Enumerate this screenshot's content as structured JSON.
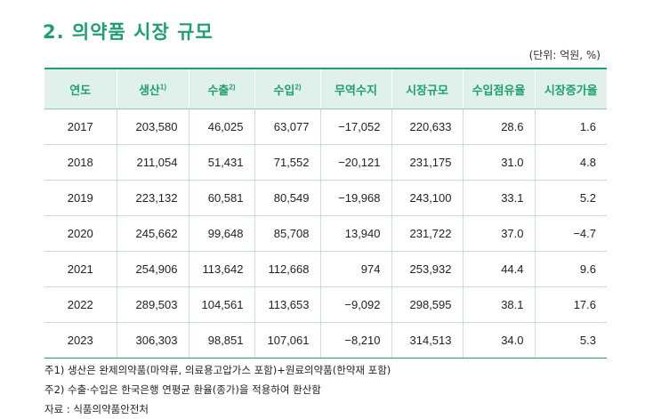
{
  "title": "2. 의약품 시장 규모",
  "unit": "(단위: 억원, %)",
  "headers": [
    {
      "label": "연도",
      "sup": ""
    },
    {
      "label": "생산",
      "sup": "1)"
    },
    {
      "label": "수출",
      "sup": "2)"
    },
    {
      "label": "수입",
      "sup": "2)"
    },
    {
      "label": "무역수지",
      "sup": ""
    },
    {
      "label": "시장규모",
      "sup": ""
    },
    {
      "label": "수입점유율",
      "sup": ""
    },
    {
      "label": "시장증가율",
      "sup": ""
    }
  ],
  "rows": [
    [
      "2017",
      "203,580",
      "46,025",
      "63,077",
      "−17,052",
      "220,633",
      "28.6",
      "1.6"
    ],
    [
      "2018",
      "211,054",
      "51,431",
      "71,552",
      "−20,121",
      "231,175",
      "31.0",
      "4.8"
    ],
    [
      "2019",
      "223,132",
      "60,581",
      "80,549",
      "−19,968",
      "243,100",
      "33.1",
      "5.2"
    ],
    [
      "2020",
      "245,662",
      "99,648",
      "85,708",
      "13,940",
      "231,722",
      "37.0",
      "−4.7"
    ],
    [
      "2021",
      "254,906",
      "113,642",
      "112,668",
      "974",
      "253,932",
      "44.4",
      "9.6"
    ],
    [
      "2022",
      "289,503",
      "104,561",
      "113,653",
      "−9,092",
      "298,595",
      "38.1",
      "17.6"
    ],
    [
      "2023",
      "306,303",
      "98,851",
      "107,061",
      "−8,210",
      "314,513",
      "34.0",
      "5.3"
    ]
  ],
  "notes": [
    "주1) 생산은 완제의약품(마약류, 의료용고압가스 포함)+원료의약품(한약재 포함)",
    "주2) 수출·수입은 한국은행 연평균 환율(종가)을 적용하여 환산함",
    "자료 : 식품의약품안전처"
  ]
}
